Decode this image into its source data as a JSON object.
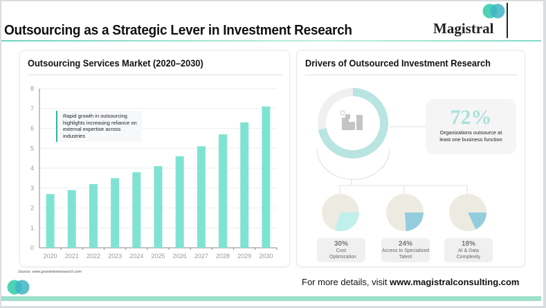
{
  "header": {
    "title": "Outsourcing as a Strategic Lever in Investment Research",
    "brand": "Magistral"
  },
  "left_card": {
    "title": "Outsourcing Services Market (2020–2030)",
    "annotation": "Rapid growth in outsourcing highlights increasing reliance on external expertise across industries",
    "source": "Source: www.grandviewresearch.com"
  },
  "chart_data": {
    "type": "bar",
    "categories": [
      "2020",
      "2021",
      "2022",
      "2023",
      "2024",
      "2025",
      "2026",
      "2027",
      "2028",
      "2029",
      "2030"
    ],
    "values": [
      2.7,
      2.9,
      3.2,
      3.5,
      3.8,
      4.1,
      4.6,
      5.1,
      5.7,
      6.3,
      7.1
    ],
    "yticks": [
      "0",
      "1",
      "2",
      "3",
      "4",
      "5",
      "6",
      "7",
      "8"
    ],
    "ylim": [
      0,
      8
    ],
    "grid": true,
    "color": "#7fe3d2"
  },
  "right_card": {
    "title": "Drivers of Outsourced Investment Research",
    "donut": {
      "value": 72,
      "icon": "buildings-search-icon",
      "color": "#b8e5e1"
    },
    "stat": {
      "value": "72%",
      "label": "Organizations outsource at least one business function"
    },
    "drivers": [
      {
        "pct": "30%",
        "value": 30,
        "label": "Cost Optimization",
        "color": "#c1efec"
      },
      {
        "pct": "24%",
        "value": 24,
        "label": "Access to Specialized Talent",
        "color": "#93cddd"
      },
      {
        "pct": "18%",
        "value": 18,
        "label": "AI & Data Complexity",
        "color": "#93cddd"
      }
    ]
  },
  "footer": {
    "text": "For more details, visit ",
    "link": "www.magistralconsulting.com"
  }
}
